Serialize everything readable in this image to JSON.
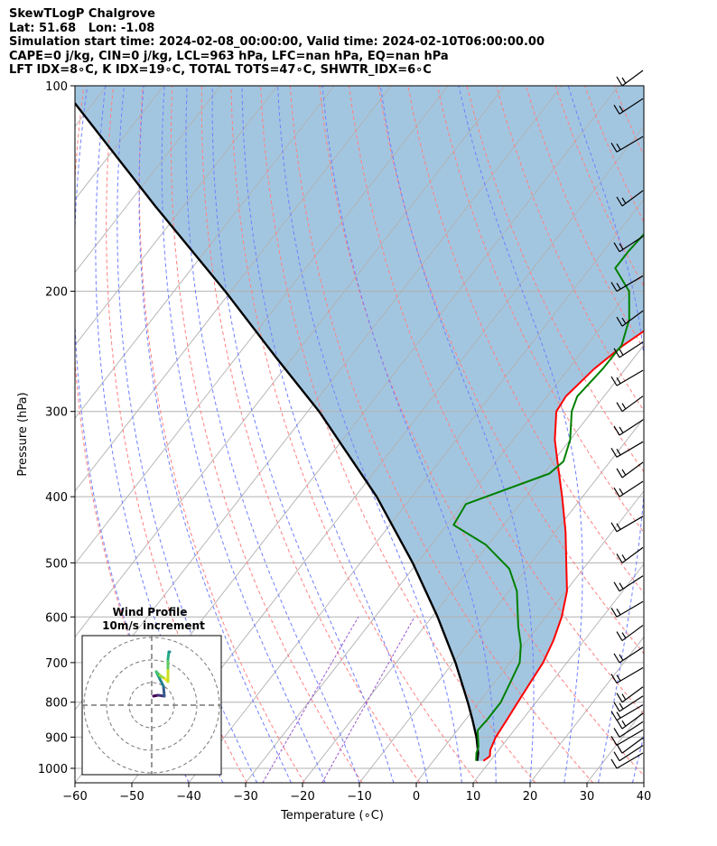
{
  "header": {
    "line1": "SkewTLogP Chalgrove",
    "line2": "Lat: 51.68   Lon: -1.08",
    "line3": "Simulation start time: 2024-02-08_00:00:00, Valid time: 2024-02-10T06:00:00.00",
    "line4": "CAPE=0 j/kg, CIN=0 j/kg, LCL=963 hPa, LFC=nan hPa, EQ=nan hPa",
    "line5": "LFT IDX=8∘C, K IDX=19∘C, TOTAL TOTS=47∘C, SHWTR_IDX=6∘C"
  },
  "colors": {
    "temperature": "#ff0000",
    "dewpoint": "#008000",
    "parcel": "#000000",
    "fill": "#a3c6e0",
    "dry_adiabat": "#ff7f7f",
    "moist_adiabat": "#6f7fff",
    "mixing_ratio": "#9955cc",
    "isotherm": "#b0b0b0",
    "wind_barb": "#000000"
  },
  "chart_data": {
    "type": "skewt",
    "xlabel": "Temperature (∘C)",
    "ylabel": "Pressure (hPa)",
    "xlim": [
      -60,
      40
    ],
    "ylim": [
      1050,
      100
    ],
    "x_ticks": [
      "−60",
      "−50",
      "−40",
      "−30",
      "−20",
      "−10",
      "0",
      "10",
      "20",
      "30",
      "40"
    ],
    "y_ticks": [
      "1000",
      "900",
      "800",
      "700",
      "600",
      "500",
      "400",
      "300",
      "200",
      "100"
    ],
    "grid": true,
    "temperature_profile": [
      [
        975,
        8.8
      ],
      [
        960,
        9.3
      ],
      [
        940,
        8.5
      ],
      [
        900,
        7.7
      ],
      [
        850,
        7.3
      ],
      [
        800,
        6.8
      ],
      [
        750,
        6.3
      ],
      [
        700,
        5.8
      ],
      [
        650,
        4.6
      ],
      [
        600,
        2.8
      ],
      [
        550,
        0.2
      ],
      [
        500,
        -3.8
      ],
      [
        450,
        -8.2
      ],
      [
        400,
        -13.6
      ],
      [
        360,
        -18.6
      ],
      [
        330,
        -22.7
      ],
      [
        300,
        -26.3
      ],
      [
        285,
        -26.7
      ],
      [
        260,
        -25.5
      ],
      [
        240,
        -23.6
      ],
      [
        220,
        -20.6
      ],
      [
        200,
        -17.2
      ],
      [
        185,
        -14.5
      ],
      [
        170,
        -12.7
      ],
      [
        160,
        -10.8
      ],
      [
        150,
        -9.4
      ],
      [
        140,
        -8.4
      ],
      [
        132,
        -7.4
      ],
      [
        125,
        -6.2
      ],
      [
        115,
        -3.9
      ],
      [
        108,
        -2.2
      ],
      [
        100,
        -1.0
      ]
    ],
    "dewpoint_profile": [
      [
        975,
        7.5
      ],
      [
        950,
        6.5
      ],
      [
        930,
        6.0
      ],
      [
        880,
        3.6
      ],
      [
        850,
        3.8
      ],
      [
        800,
        3.8
      ],
      [
        750,
        2.8
      ],
      [
        700,
        1.7
      ],
      [
        660,
        -0.5
      ],
      [
        620,
        -3.5
      ],
      [
        550,
        -8.6
      ],
      [
        510,
        -13.0
      ],
      [
        470,
        -20.5
      ],
      [
        440,
        -28.8
      ],
      [
        410,
        -29.5
      ],
      [
        370,
        -19.0
      ],
      [
        355,
        -18.2
      ],
      [
        330,
        -20.0
      ],
      [
        300,
        -23.6
      ],
      [
        285,
        -24.7
      ],
      [
        260,
        -24.0
      ],
      [
        240,
        -23.9
      ],
      [
        220,
        -26.1
      ],
      [
        200,
        -30.0
      ],
      [
        185,
        -35.6
      ],
      [
        175,
        -35.6
      ],
      [
        160,
        -35.0
      ],
      [
        140,
        -34.0
      ],
      [
        120,
        -31.0
      ],
      [
        110,
        -28.5
      ],
      [
        100,
        -27.0
      ]
    ],
    "parcel_profile": [
      [
        975,
        7.7
      ],
      [
        950,
        6.8
      ],
      [
        900,
        4.3
      ],
      [
        850,
        1.3
      ],
      [
        800,
        -2.0
      ],
      [
        700,
        -9.6
      ],
      [
        600,
        -19.0
      ],
      [
        500,
        -30.8
      ],
      [
        400,
        -46.2
      ],
      [
        300,
        -68.0
      ],
      [
        250,
        -83.0
      ],
      [
        200,
        -101.0
      ],
      [
        150,
        -125.0
      ],
      [
        100,
        -158.0
      ]
    ],
    "wind_barb_levels": [
      1000,
      975,
      950,
      925,
      900,
      875,
      850,
      825,
      800,
      750,
      700,
      650,
      600,
      550,
      500,
      450,
      400,
      375,
      350,
      325,
      300,
      275,
      250,
      225,
      200,
      175,
      150,
      125,
      110,
      100
    ]
  },
  "inset": {
    "title": "Wind Profile",
    "subtitle": "10m/s increment"
  }
}
